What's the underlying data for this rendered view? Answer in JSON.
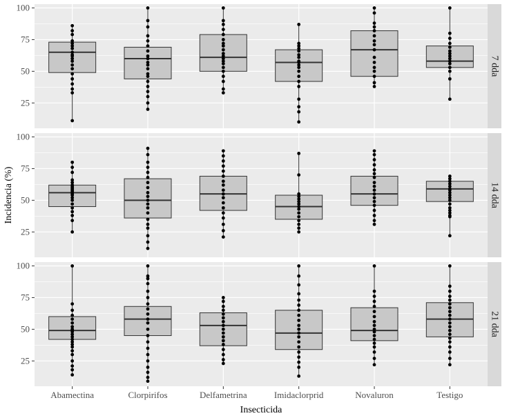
{
  "chart_data": {
    "type": "box",
    "xlabel": "Insecticida",
    "ylabel": "Incidencia (%)",
    "categories": [
      "Abamectina",
      "Clorpirifos",
      "Delfametrina",
      "Imidaclorprid",
      "Novaluron",
      "Testigo"
    ],
    "ylim": [
      5,
      103
    ],
    "yticks": [
      "25",
      "50",
      "75",
      "100"
    ],
    "grid": true,
    "colors": {
      "panel_bg": "#ebebeb",
      "grid": "#ffffff",
      "box_fill": "#c8c8c8",
      "box_line": "#333333",
      "point": "#000000",
      "strip_bg": "#d9d9d9"
    },
    "panels": [
      {
        "label": "7 dda",
        "boxes": [
          {
            "q1": 49,
            "median": 65,
            "q3": 73,
            "min": 11,
            "max": 86,
            "points": [
              11,
              33,
              36,
              40,
              44,
              48,
              52,
              55,
              58,
              60,
              62,
              63,
              65,
              68,
              70,
              72,
              74,
              79,
              82,
              86
            ]
          },
          {
            "q1": 44,
            "median": 60,
            "q3": 69,
            "min": 20,
            "max": 100,
            "points": [
              20,
              25,
              30,
              34,
              38,
              42,
              46,
              48,
              52,
              55,
              57,
              60,
              62,
              66,
              70,
              74,
              78,
              85,
              90,
              100
            ]
          },
          {
            "q1": 50,
            "median": 61,
            "q3": 79,
            "min": 33,
            "max": 100,
            "points": [
              33,
              36,
              42,
              46,
              50,
              53,
              56,
              58,
              60,
              62,
              64,
              67,
              70,
              72,
              75,
              79,
              83,
              87,
              90,
              100
            ]
          },
          {
            "q1": 42,
            "median": 57,
            "q3": 67,
            "min": 10,
            "max": 87,
            "points": [
              10,
              18,
              22,
              28,
              38,
              42,
              46,
              50,
              53,
              55,
              57,
              58,
              61,
              63,
              66,
              68,
              70,
              72,
              87
            ]
          },
          {
            "q1": 46,
            "median": 67,
            "q3": 82,
            "min": 38,
            "max": 100,
            "points": [
              38,
              41,
              46,
              50,
              53,
              57,
              61,
              67,
              71,
              74,
              78,
              82,
              85,
              88,
              96,
              100
            ]
          },
          {
            "q1": 53,
            "median": 58,
            "q3": 70,
            "min": 28,
            "max": 100,
            "points": [
              28,
              44,
              50,
              53,
              56,
              58,
              60,
              62,
              64,
              66,
              69,
              72,
              76,
              80,
              100
            ]
          }
        ]
      },
      {
        "label": "14 dda",
        "boxes": [
          {
            "q1": 45,
            "median": 56,
            "q3": 62,
            "min": 25,
            "max": 80,
            "points": [
              25,
              34,
              38,
              41,
              44,
              47,
              50,
              52,
              54,
              55,
              56,
              57,
              58,
              59,
              60,
              61,
              62,
              64,
              66,
              72,
              76,
              80
            ]
          },
          {
            "q1": 36,
            "median": 50,
            "q3": 67,
            "min": 12,
            "max": 91,
            "points": [
              12,
              17,
              22,
              28,
              31,
              35,
              40,
              44,
              47,
              50,
              53,
              56,
              60,
              64,
              68,
              72,
              76,
              80,
              86,
              91
            ]
          },
          {
            "q1": 42,
            "median": 55,
            "q3": 69,
            "min": 21,
            "max": 89,
            "points": [
              21,
              26,
              31,
              36,
              40,
              44,
              48,
              52,
              55,
              58,
              62,
              65,
              69,
              73,
              77,
              81,
              85,
              89
            ]
          },
          {
            "q1": 35,
            "median": 45,
            "q3": 54,
            "min": 25,
            "max": 87,
            "points": [
              25,
              28,
              31,
              34,
              37,
              40,
              43,
              45,
              47,
              49,
              51,
              53,
              55,
              70,
              87
            ]
          },
          {
            "q1": 46,
            "median": 55,
            "q3": 69,
            "min": 31,
            "max": 89,
            "points": [
              31,
              34,
              38,
              42,
              46,
              49,
              52,
              55,
              58,
              61,
              64,
              68,
              71,
              74,
              78,
              82,
              86,
              89
            ]
          },
          {
            "q1": 49,
            "median": 59,
            "q3": 65,
            "min": 22,
            "max": 69,
            "points": [
              22,
              37,
              38,
              40,
              42,
              44,
              47,
              50,
              52,
              54,
              56,
              58,
              59,
              61,
              63,
              65,
              67,
              69
            ]
          }
        ]
      },
      {
        "label": "21 dda",
        "boxes": [
          {
            "q1": 42,
            "median": 49,
            "q3": 60,
            "min": 14,
            "max": 100,
            "points": [
              14,
              18,
              21,
              25,
              30,
              33,
              36,
              38,
              40,
              42,
              44,
              46,
              48,
              49,
              50,
              52,
              55,
              58,
              61,
              65,
              70,
              100
            ]
          },
          {
            "q1": 45,
            "median": 58,
            "q3": 68,
            "min": 9,
            "max": 100,
            "points": [
              9,
              12,
              16,
              20,
              25,
              30,
              35,
              40,
              45,
              50,
              55,
              58,
              62,
              66,
              70,
              75,
              80,
              86,
              90,
              92,
              100
            ]
          },
          {
            "q1": 37,
            "median": 53,
            "q3": 63,
            "min": 23,
            "max": 75,
            "points": [
              23,
              26,
              30,
              34,
              38,
              41,
              44,
              47,
              50,
              53,
              56,
              59,
              62,
              65,
              68,
              72,
              75
            ]
          },
          {
            "q1": 34,
            "median": 47,
            "q3": 65,
            "min": 13,
            "max": 100,
            "points": [
              13,
              20,
              24,
              28,
              32,
              36,
              40,
              44,
              47,
              50,
              53,
              57,
              61,
              65,
              69,
              73,
              78,
              85,
              92,
              100
            ]
          },
          {
            "q1": 41,
            "median": 49,
            "q3": 67,
            "min": 22,
            "max": 100,
            "points": [
              22,
              27,
              32,
              36,
              39,
              42,
              45,
              48,
              50,
              53,
              56,
              60,
              64,
              68,
              72,
              76,
              80,
              100
            ]
          },
          {
            "q1": 44,
            "median": 58,
            "q3": 71,
            "min": 22,
            "max": 100,
            "points": [
              22,
              27,
              32,
              36,
              40,
              43,
              46,
              49,
              52,
              55,
              58,
              61,
              64,
              67,
              70,
              73,
              76,
              80,
              84,
              100
            ]
          }
        ]
      }
    ]
  }
}
